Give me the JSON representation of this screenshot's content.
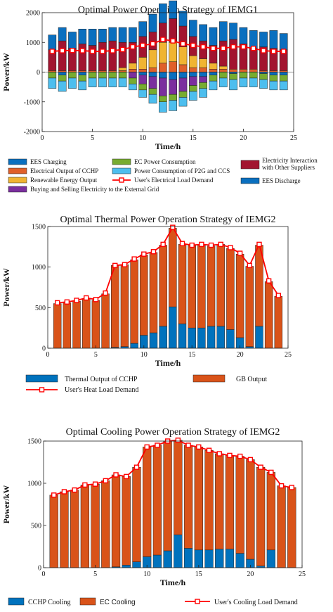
{
  "chart_data": [
    {
      "type": "bar",
      "title": "Optimal Power Operation Strategy of IEMG1",
      "xlabel": "Time/h",
      "ylabel": "Power/kW",
      "xlim": [
        0,
        25
      ],
      "ylim": [
        -2000,
        2000
      ],
      "xticks": [
        "0",
        "5",
        "10",
        "15",
        "20",
        "25"
      ],
      "yticks": [
        "-2000",
        "-1000",
        "0",
        "1000",
        "2000"
      ],
      "grid": false,
      "legend_position": "bottom",
      "x": [
        1,
        2,
        3,
        4,
        5,
        6,
        7,
        8,
        9,
        10,
        11,
        12,
        13,
        14,
        15,
        16,
        17,
        18,
        19,
        20,
        21,
        22,
        23,
        24
      ],
      "series": [
        {
          "name": "EES Charging",
          "color": "#0a6fbf",
          "stack": "neg",
          "values": [
            0,
            -100,
            0,
            -100,
            0,
            0,
            0,
            0,
            0,
            -100,
            -150,
            -200,
            -250,
            -200,
            -150,
            -150,
            -100,
            0,
            -50,
            0,
            0,
            -50,
            -100,
            -100
          ]
        },
        {
          "name": "Electrical Output of CCHP",
          "color": "#e0602a",
          "stack": "pos",
          "values": [
            50,
            50,
            50,
            50,
            50,
            50,
            50,
            50,
            100,
            100,
            150,
            300,
            350,
            250,
            150,
            150,
            100,
            100,
            100,
            100,
            100,
            50,
            50,
            50
          ]
        },
        {
          "name": "Renewable Energy Output",
          "color": "#f0b432",
          "stack": "pos",
          "values": [
            0,
            0,
            0,
            0,
            0,
            0,
            0,
            100,
            200,
            400,
            600,
            700,
            650,
            600,
            400,
            300,
            200,
            100,
            0,
            0,
            0,
            0,
            0,
            0
          ]
        },
        {
          "name": "Buying and Selling Electricity to the External Grid",
          "color": "#7b2f9e",
          "stack": "mixed",
          "values": [
            0,
            0,
            0,
            0,
            0,
            0,
            0,
            0,
            -200,
            -300,
            -400,
            -600,
            -500,
            -450,
            -300,
            -200,
            0,
            0,
            0,
            0,
            0,
            0,
            0,
            0
          ]
        },
        {
          "name": "EC Power Consumption",
          "color": "#77ac30",
          "stack": "neg",
          "values": [
            -200,
            -200,
            -200,
            -200,
            -200,
            -200,
            -200,
            -200,
            -200,
            -200,
            -200,
            -200,
            -200,
            -200,
            -200,
            -200,
            -200,
            -200,
            -200,
            -200,
            -200,
            -200,
            -200,
            -200
          ]
        },
        {
          "name": "Power Consumption of P2G and CCS",
          "color": "#4dbeee",
          "stack": "neg",
          "values": [
            -350,
            -350,
            -350,
            -300,
            -300,
            -300,
            -300,
            -300,
            -200,
            -250,
            -300,
            -350,
            -350,
            -300,
            -300,
            -300,
            -300,
            -300,
            -350,
            -300,
            -300,
            -300,
            -300,
            -300
          ]
        },
        {
          "name": "User's Electrical Load Demand",
          "color": "#ff0000",
          "type": "line",
          "values": [
            700,
            720,
            730,
            720,
            700,
            700,
            720,
            760,
            850,
            900,
            950,
            1100,
            1050,
            950,
            900,
            850,
            800,
            800,
            850,
            850,
            800,
            720,
            700,
            700
          ]
        },
        {
          "name": "Electricity Interaction with Other Suppliers",
          "color": "#a2142f",
          "stack": "pos",
          "values": [
            700,
            1000,
            750,
            900,
            850,
            950,
            1000,
            850,
            700,
            700,
            600,
            650,
            800,
            700,
            650,
            600,
            600,
            850,
            1000,
            850,
            700,
            800,
            750,
            700
          ]
        },
        {
          "name": "EES Discharge",
          "color": "#0a6fbf",
          "stack": "pos",
          "values": [
            500,
            450,
            550,
            500,
            550,
            450,
            450,
            500,
            500,
            500,
            600,
            650,
            600,
            500,
            550,
            550,
            600,
            650,
            550,
            550,
            600,
            500,
            600,
            550
          ]
        }
      ]
    },
    {
      "type": "bar",
      "title": "Optimal Thermal Power Operation Strategy of IEMG2",
      "xlabel": "Time/h",
      "ylabel": "Power/kW",
      "xlim": [
        0,
        25
      ],
      "ylim": [
        0,
        1500
      ],
      "xticks": [
        "0",
        "5",
        "10",
        "15",
        "20",
        "25"
      ],
      "yticks": [
        "0",
        "500",
        "1000",
        "1500"
      ],
      "grid": false,
      "legend_position": "bottom",
      "x": [
        1,
        2,
        3,
        4,
        5,
        6,
        7,
        8,
        9,
        10,
        11,
        12,
        13,
        14,
        15,
        16,
        17,
        18,
        19,
        20,
        21,
        22,
        23,
        24
      ],
      "series": [
        {
          "name": "Thermal Output of CCHP",
          "color": "#0072bd",
          "values": [
            0,
            0,
            0,
            0,
            0,
            0,
            10,
            20,
            60,
            160,
            190,
            270,
            510,
            300,
            250,
            250,
            270,
            270,
            230,
            130,
            20,
            270,
            0,
            0
          ]
        },
        {
          "name": "GB Output",
          "color": "#d95319",
          "values": [
            550,
            560,
            580,
            610,
            590,
            670,
            1010,
            1010,
            1030,
            990,
            990,
            1000,
            970,
            980,
            1020,
            1020,
            990,
            1010,
            1000,
            1030,
            990,
            1000,
            820,
            640
          ]
        },
        {
          "name": "User's Heat Load Demand",
          "color": "#ff0000",
          "type": "line",
          "values": [
            560,
            570,
            590,
            620,
            600,
            680,
            1020,
            1030,
            1100,
            1160,
            1190,
            1280,
            1490,
            1290,
            1270,
            1280,
            1270,
            1280,
            1240,
            1170,
            1020,
            1280,
            830,
            650
          ]
        }
      ]
    },
    {
      "type": "bar",
      "title": "Optimal Cooling Power Operation Strategy of IEMG2",
      "xlabel": "Time/h",
      "ylabel": "Power/kW",
      "xlim": [
        0,
        25
      ],
      "ylim": [
        0,
        1500
      ],
      "xticks": [
        "0",
        "5",
        "10",
        "15",
        "20",
        "25"
      ],
      "yticks": [
        "0",
        "500",
        "1000",
        "1500"
      ],
      "grid": false,
      "legend_position": "bottom",
      "x": [
        1,
        2,
        3,
        4,
        5,
        6,
        7,
        8,
        9,
        10,
        11,
        12,
        13,
        14,
        15,
        16,
        17,
        18,
        19,
        20,
        21,
        22,
        23,
        24
      ],
      "series": [
        {
          "name": "CCHP Cooling",
          "color": "#0072bd",
          "values": [
            0,
            0,
            0,
            0,
            0,
            0,
            10,
            30,
            70,
            130,
            150,
            200,
            390,
            230,
            210,
            210,
            220,
            220,
            170,
            100,
            20,
            210,
            0,
            0
          ]
        },
        {
          "name": "EC Cooling",
          "color": "#d95319",
          "values": [
            860,
            900,
            920,
            980,
            990,
            1030,
            1090,
            1050,
            1120,
            1300,
            1300,
            1300,
            1120,
            1220,
            1220,
            1180,
            1130,
            1110,
            1150,
            1180,
            1170,
            920,
            970,
            950
          ]
        },
        {
          "name": "User's Cooling Load Demand",
          "color": "#ff0000",
          "type": "line",
          "values": [
            860,
            900,
            920,
            980,
            990,
            1030,
            1100,
            1080,
            1190,
            1430,
            1450,
            1500,
            1510,
            1450,
            1430,
            1390,
            1350,
            1330,
            1320,
            1280,
            1190,
            1130,
            970,
            950
          ]
        }
      ]
    }
  ]
}
